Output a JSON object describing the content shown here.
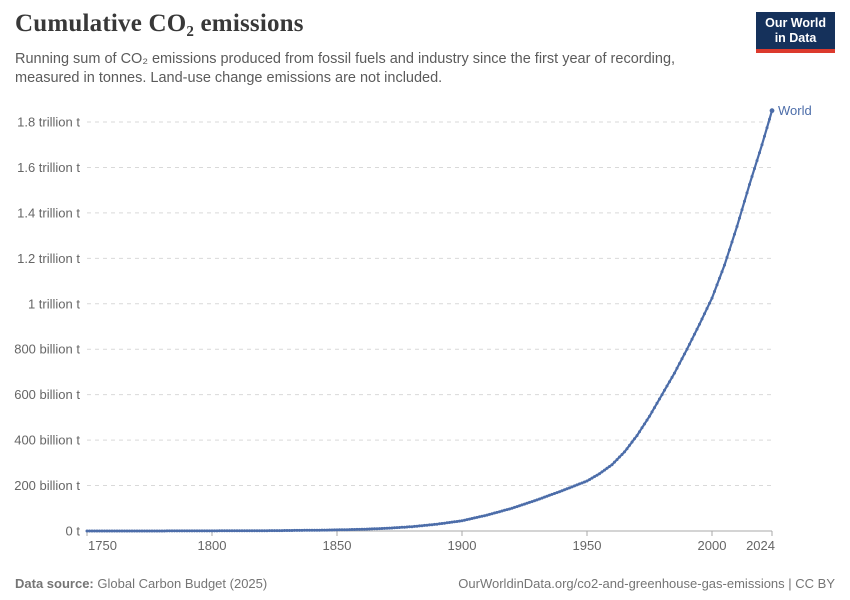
{
  "header": {
    "title": "Cumulative CO₂ emissions",
    "subtitle": "Running sum of CO₂ emissions produced from fossil fuels and industry since the first year of recording, measured in tonnes. Land-use change emissions are not included.",
    "logo": {
      "line1": "Our World",
      "line2": "in Data"
    }
  },
  "footer": {
    "source_label": "Data source:",
    "source_value": "Global Carbon Budget (2025)",
    "right": "OurWorldinData.org/co2-and-greenhouse-gas-emissions | CC BY"
  },
  "chart_data": {
    "type": "line",
    "title": "Cumulative CO₂ emissions",
    "unit": "tonnes",
    "values_unit": "billion tonnes",
    "xlim": [
      1750,
      2024
    ],
    "ylim": [
      0,
      1800
    ],
    "grid": "horizontal-dashed",
    "legend_position": "end-of-line-label",
    "x": [
      1750,
      1760,
      1770,
      1780,
      1790,
      1800,
      1810,
      1820,
      1830,
      1840,
      1850,
      1860,
      1870,
      1880,
      1890,
      1900,
      1910,
      1920,
      1930,
      1940,
      1950,
      1955,
      1960,
      1965,
      1970,
      1975,
      1980,
      1985,
      1990,
      1995,
      2000,
      2005,
      2010,
      2015,
      2020,
      2024
    ],
    "series": [
      {
        "name": "World",
        "values": [
          0,
          0.1,
          0.1,
          0.2,
          0.4,
          0.6,
          0.9,
          1.4,
          2.1,
          3.2,
          4.8,
          7.5,
          12,
          19,
          30,
          45,
          70,
          100,
          137,
          177,
          220,
          252,
          292,
          348,
          420,
          505,
          600,
          695,
          800,
          910,
          1025,
          1170,
          1340,
          1525,
          1700,
          1850
        ]
      }
    ],
    "x_ticks": [
      1750,
      1800,
      1850,
      1900,
      1950,
      2000,
      2024
    ],
    "y_ticks": [
      {
        "value": 0,
        "label": "0 t"
      },
      {
        "value": 200,
        "label": "200 billion t"
      },
      {
        "value": 400,
        "label": "400 billion t"
      },
      {
        "value": 600,
        "label": "600 billion t"
      },
      {
        "value": 800,
        "label": "800 billion t"
      },
      {
        "value": 1000,
        "label": "1 trillion t"
      },
      {
        "value": 1200,
        "label": "1.2 trillion t"
      },
      {
        "value": 1400,
        "label": "1.4 trillion t"
      },
      {
        "value": 1600,
        "label": "1.6 trillion t"
      },
      {
        "value": 1800,
        "label": "1.8 trillion t"
      }
    ],
    "colors": {
      "line": "#4c6da9",
      "tick_label": "#666666",
      "grid": "#d9d9d9",
      "axis": "#a8a8a8"
    }
  }
}
